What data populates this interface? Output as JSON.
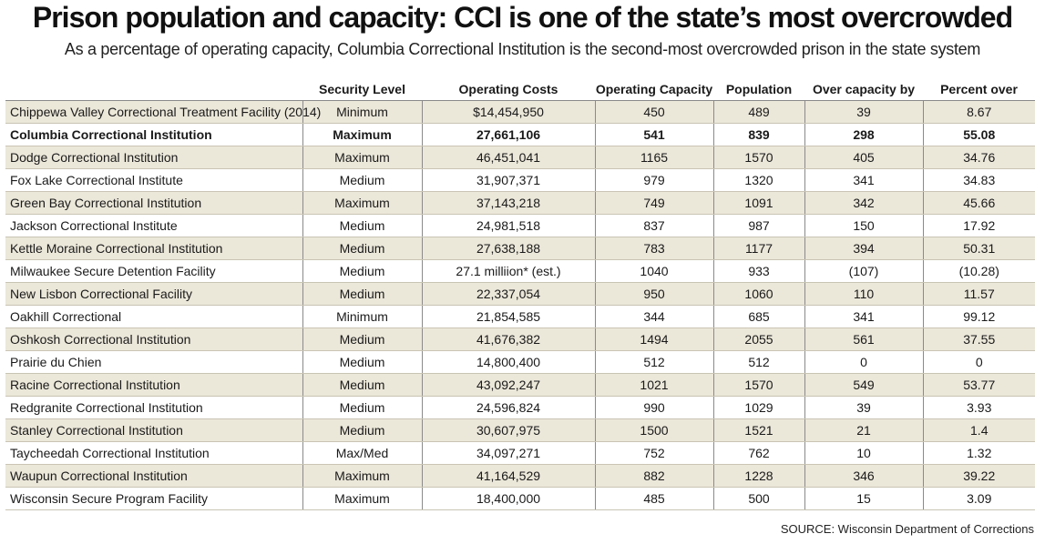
{
  "title": "Prison population and capacity: CCI is one of the state’s most overcrowded",
  "subtitle": "As a percentage of operating capacity, Columbia Correctional Institution is the second-most overcrowded prison in the state system",
  "source": "SOURCE: Wisconsin Department of Corrections",
  "colors": {
    "row_shade": "#ebe7d9",
    "row_plain": "#ffffff",
    "divider": "#8a8a8a"
  },
  "chart_data": {
    "type": "table",
    "title": "Prison population and capacity: CCI is one of the state’s most overcrowded",
    "columns": [
      "",
      "Security Level",
      "Operating Costs",
      "Operating Capacity",
      "Population",
      "Over capacity by",
      "Percent over"
    ],
    "highlighted_row": 1,
    "rows": [
      [
        "Chippewa Valley Correctional Treatment Facility (2014)",
        "Minimum",
        "$14,454,950",
        "450",
        "489",
        "39",
        "8.67"
      ],
      [
        "Columbia Correctional Institution",
        "Maximum",
        "27,661,106",
        "541",
        "839",
        "298",
        "55.08"
      ],
      [
        "Dodge Correctional Institution",
        "Maximum",
        "46,451,041",
        "1165",
        "1570",
        "405",
        "34.76"
      ],
      [
        "Fox Lake Correctional Institute",
        "Medium",
        "31,907,371",
        "979",
        "1320",
        "341",
        "34.83"
      ],
      [
        "Green Bay Correctional Institution",
        "Maximum",
        "37,143,218",
        "749",
        "1091",
        "342",
        "45.66"
      ],
      [
        "Jackson Correctional Institute",
        "Medium",
        "24,981,518",
        "837",
        "987",
        "150",
        "17.92"
      ],
      [
        "Kettle Moraine Correctional Institution",
        "Medium",
        "27,638,188",
        "783",
        "1177",
        "394",
        "50.31"
      ],
      [
        "Milwaukee Secure Detention Facility",
        "Medium",
        "27.1 milliion* (est.)",
        "1040",
        "933",
        "(107)",
        "(10.28)"
      ],
      [
        "New Lisbon Correctional Facility",
        "Medium",
        "22,337,054",
        "950",
        "1060",
        "110",
        "11.57"
      ],
      [
        "Oakhill Correctional",
        "Minimum",
        "21,854,585",
        "344",
        "685",
        "341",
        "99.12"
      ],
      [
        "Oshkosh Correctional Institution",
        "Medium",
        "41,676,382",
        "1494",
        "2055",
        "561",
        "37.55"
      ],
      [
        "Prairie du Chien",
        "Medium",
        "14,800,400",
        "512",
        "512",
        "0",
        "0"
      ],
      [
        "Racine Correctional Institution",
        "Medium",
        "43,092,247",
        "1021",
        "1570",
        "549",
        "53.77"
      ],
      [
        "Redgranite Correctional Institution",
        "Medium",
        "24,596,824",
        "990",
        "1029",
        "39",
        "3.93"
      ],
      [
        "Stanley Correctional Institution",
        "Medium",
        "30,607,975",
        "1500",
        "1521",
        "21",
        "1.4"
      ],
      [
        "Taycheedah Correctional Institution",
        "Max/Med",
        "34,097,271",
        "752",
        "762",
        "10",
        "1.32"
      ],
      [
        "Waupun Correctional Institution",
        "Maximum",
        "41,164,529",
        "882",
        "1228",
        "346",
        "39.22"
      ],
      [
        "Wisconsin Secure Program Facility",
        "Maximum",
        "18,400,000",
        "485",
        "500",
        "15",
        "3.09"
      ]
    ]
  }
}
